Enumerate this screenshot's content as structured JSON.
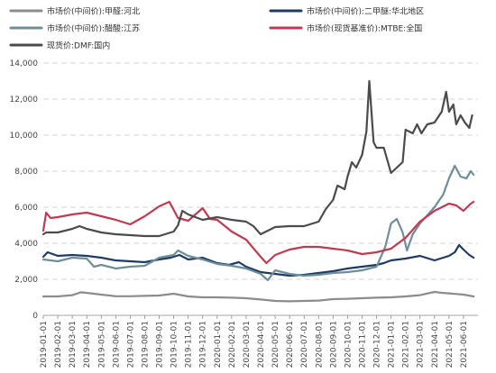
{
  "chart_data": {
    "type": "line",
    "title": "",
    "xlabel": "",
    "ylabel": "",
    "ylim": [
      0,
      14000
    ],
    "yticks": [
      0,
      2000,
      4000,
      6000,
      8000,
      10000,
      12000,
      14000
    ],
    "ytick_labels": [
      "0",
      "2,000",
      "4,000",
      "6,000",
      "8,000",
      "10,000",
      "12,000",
      "14,000"
    ],
    "grid": "horizontal-dashed",
    "legend_position": "top",
    "xtick_labels": [
      "2019-01-01",
      "2019-02-01",
      "2019-03-01",
      "2019-04-01",
      "2019-05-01",
      "2019-06-01",
      "2019-07-01",
      "2019-08-01",
      "2019-09-01",
      "2019-10-01",
      "2019-11-01",
      "2019-12-01",
      "2020-01-01",
      "2020-02-01",
      "2020-03-01",
      "2020-04-01",
      "2020-05-01",
      "2020-06-01",
      "2020-07-01",
      "2020-08-01",
      "2020-09-01",
      "2020-10-01",
      "2020-11-01",
      "2020-12-01",
      "2021-01-01",
      "2021-02-01",
      "2021-03-01",
      "2021-04-01",
      "2021-05-01",
      "2021-06-01"
    ],
    "series": [
      {
        "name": "市场价(中间价):甲醛:河北",
        "color": "#8c8c8c",
        "points": [
          [
            0,
            1050
          ],
          [
            1,
            1050
          ],
          [
            2,
            1120
          ],
          [
            2.6,
            1280
          ],
          [
            3.5,
            1200
          ],
          [
            4,
            1150
          ],
          [
            5,
            1060
          ],
          [
            6,
            1060
          ],
          [
            7,
            1080
          ],
          [
            8,
            1100
          ],
          [
            9,
            1200
          ],
          [
            10,
            1050
          ],
          [
            11,
            1000
          ],
          [
            12,
            1000
          ],
          [
            13,
            980
          ],
          [
            14,
            950
          ],
          [
            15,
            880
          ],
          [
            16,
            800
          ],
          [
            17,
            780
          ],
          [
            18,
            800
          ],
          [
            19,
            820
          ],
          [
            20,
            900
          ],
          [
            21,
            920
          ],
          [
            22,
            950
          ],
          [
            23,
            980
          ],
          [
            24,
            1000
          ],
          [
            25,
            1050
          ],
          [
            26,
            1120
          ],
          [
            27,
            1300
          ],
          [
            27.5,
            1250
          ],
          [
            28,
            1220
          ],
          [
            29,
            1150
          ],
          [
            29.7,
            1050
          ]
        ]
      },
      {
        "name": "市场价(中间价):二甲醚:华北地区",
        "color": "#1f3b64",
        "points": [
          [
            0,
            3250
          ],
          [
            0.3,
            3500
          ],
          [
            1,
            3300
          ],
          [
            2,
            3350
          ],
          [
            3,
            3300
          ],
          [
            4,
            3200
          ],
          [
            5,
            3050
          ],
          [
            6,
            3000
          ],
          [
            7,
            2950
          ],
          [
            8,
            3100
          ],
          [
            8.8,
            3200
          ],
          [
            9.4,
            3350
          ],
          [
            10,
            3100
          ],
          [
            11,
            3200
          ],
          [
            12,
            2900
          ],
          [
            12.8,
            2800
          ],
          [
            13.5,
            2950
          ],
          [
            14,
            2700
          ],
          [
            15,
            2400
          ],
          [
            16,
            2300
          ],
          [
            17,
            2200
          ],
          [
            18,
            2250
          ],
          [
            19,
            2350
          ],
          [
            20,
            2450
          ],
          [
            21,
            2600
          ],
          [
            22,
            2700
          ],
          [
            23,
            2800
          ],
          [
            23.5,
            2900
          ],
          [
            24,
            3050
          ],
          [
            25,
            3150
          ],
          [
            26,
            3300
          ],
          [
            27,
            3050
          ],
          [
            28,
            3300
          ],
          [
            28.4,
            3500
          ],
          [
            28.7,
            3900
          ],
          [
            29,
            3650
          ],
          [
            29.4,
            3350
          ],
          [
            29.7,
            3200
          ]
        ]
      },
      {
        "name": "市场价(中间价):醋酸:江苏",
        "color": "#6e8e99",
        "points": [
          [
            0,
            3100
          ],
          [
            1,
            3000
          ],
          [
            2,
            3200
          ],
          [
            3,
            3150
          ],
          [
            3.5,
            2700
          ],
          [
            4,
            2800
          ],
          [
            5,
            2600
          ],
          [
            6,
            2700
          ],
          [
            7,
            2750
          ],
          [
            8,
            3200
          ],
          [
            9,
            3350
          ],
          [
            9.3,
            3600
          ],
          [
            10,
            3300
          ],
          [
            11,
            3100
          ],
          [
            12,
            2850
          ],
          [
            13,
            2750
          ],
          [
            14,
            2600
          ],
          [
            15,
            2300
          ],
          [
            15.5,
            1950
          ],
          [
            16,
            2500
          ],
          [
            17,
            2300
          ],
          [
            18,
            2200
          ],
          [
            19,
            2250
          ],
          [
            20,
            2350
          ],
          [
            21,
            2400
          ],
          [
            22,
            2500
          ],
          [
            23,
            2700
          ],
          [
            23.6,
            3800
          ],
          [
            24,
            5100
          ],
          [
            24.4,
            5350
          ],
          [
            24.8,
            4600
          ],
          [
            25.1,
            3600
          ],
          [
            25.5,
            4500
          ],
          [
            26,
            5100
          ],
          [
            27,
            6000
          ],
          [
            27.6,
            6700
          ],
          [
            28,
            7600
          ],
          [
            28.4,
            8300
          ],
          [
            28.8,
            7700
          ],
          [
            29.2,
            7600
          ],
          [
            29.5,
            8000
          ],
          [
            29.7,
            7800
          ]
        ]
      },
      {
        "name": "市场价(现货基准价):MTBE:全国",
        "color": "#c03a52",
        "points": [
          [
            0,
            4700
          ],
          [
            0.2,
            5700
          ],
          [
            0.5,
            5400
          ],
          [
            1,
            5450
          ],
          [
            2,
            5600
          ],
          [
            3,
            5700
          ],
          [
            4,
            5500
          ],
          [
            5,
            5300
          ],
          [
            6,
            5050
          ],
          [
            7,
            5500
          ],
          [
            8,
            6050
          ],
          [
            8.7,
            6300
          ],
          [
            9.3,
            5400
          ],
          [
            10,
            5250
          ],
          [
            11,
            5950
          ],
          [
            11.5,
            5350
          ],
          [
            12,
            5300
          ],
          [
            13,
            4650
          ],
          [
            14,
            4200
          ],
          [
            15,
            3250
          ],
          [
            15.4,
            2900
          ],
          [
            16,
            3350
          ],
          [
            17,
            3650
          ],
          [
            18,
            3800
          ],
          [
            19,
            3800
          ],
          [
            20,
            3700
          ],
          [
            21,
            3600
          ],
          [
            22,
            3400
          ],
          [
            23,
            3500
          ],
          [
            24,
            3700
          ],
          [
            25,
            4300
          ],
          [
            26,
            5200
          ],
          [
            27,
            5800
          ],
          [
            28,
            6200
          ],
          [
            28.5,
            6100
          ],
          [
            29,
            5800
          ],
          [
            29.5,
            6200
          ],
          [
            29.7,
            6300
          ]
        ]
      },
      {
        "name": "现货价:DMF:国内",
        "color": "#4b4b4b",
        "points": [
          [
            0,
            4500
          ],
          [
            0.2,
            4600
          ],
          [
            1,
            4600
          ],
          [
            2,
            4800
          ],
          [
            2.5,
            4950
          ],
          [
            3,
            4800
          ],
          [
            4,
            4600
          ],
          [
            5,
            4500
          ],
          [
            6,
            4450
          ],
          [
            7,
            4400
          ],
          [
            8,
            4400
          ],
          [
            9,
            4650
          ],
          [
            9.3,
            5000
          ],
          [
            9.6,
            5800
          ],
          [
            10,
            5600
          ],
          [
            11,
            5300
          ],
          [
            12,
            5450
          ],
          [
            13,
            5300
          ],
          [
            14,
            5200
          ],
          [
            14.5,
            4950
          ],
          [
            15,
            4500
          ],
          [
            16,
            4900
          ],
          [
            17,
            4950
          ],
          [
            18,
            4950
          ],
          [
            19,
            5200
          ],
          [
            19.5,
            5900
          ],
          [
            20,
            6400
          ],
          [
            20.3,
            7200
          ],
          [
            20.8,
            7000
          ],
          [
            21,
            7700
          ],
          [
            21.3,
            8500
          ],
          [
            21.6,
            8200
          ],
          [
            22,
            8900
          ],
          [
            22.3,
            10200
          ],
          [
            22.5,
            13000
          ],
          [
            22.8,
            9600
          ],
          [
            23,
            9300
          ],
          [
            23.5,
            9300
          ],
          [
            24,
            7900
          ],
          [
            24.4,
            8200
          ],
          [
            24.8,
            8500
          ],
          [
            25,
            10300
          ],
          [
            25.5,
            10100
          ],
          [
            25.8,
            10600
          ],
          [
            26.1,
            10100
          ],
          [
            26.5,
            10600
          ],
          [
            27,
            10700
          ],
          [
            27.5,
            11300
          ],
          [
            27.8,
            12400
          ],
          [
            28,
            11300
          ],
          [
            28.3,
            11700
          ],
          [
            28.5,
            10600
          ],
          [
            28.8,
            11100
          ],
          [
            29.1,
            10700
          ],
          [
            29.4,
            10400
          ],
          [
            29.6,
            11100
          ]
        ]
      }
    ]
  }
}
